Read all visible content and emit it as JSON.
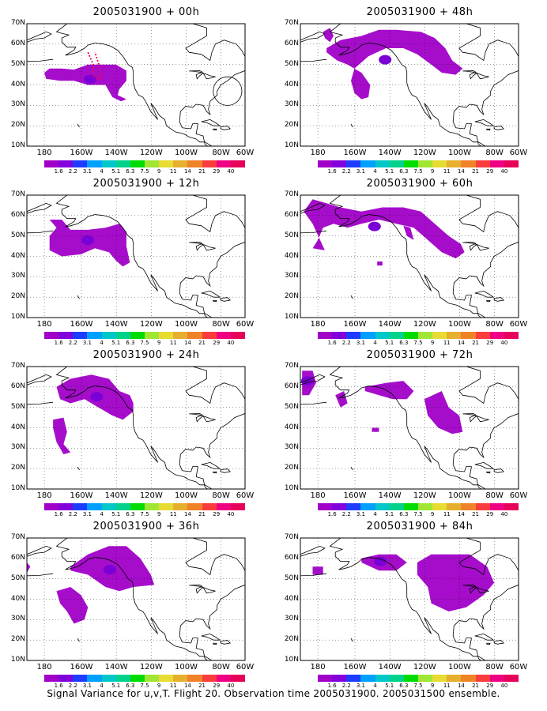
{
  "panels": [
    {
      "title": "2005031900 + 00h"
    },
    {
      "title": "2005031900 + 48h"
    },
    {
      "title": "2005031900 + 12h"
    },
    {
      "title": "2005031900 + 60h"
    },
    {
      "title": "2005031900 + 24h"
    },
    {
      "title": "2005031900 + 72h"
    },
    {
      "title": "2005031900 + 36h"
    },
    {
      "title": "2005031900 + 84h"
    }
  ],
  "lat_labels": [
    "70N",
    "60N",
    "50N",
    "40N",
    "30N",
    "20N",
    "10N"
  ],
  "lon_labels": [
    "180",
    "160W",
    "140W",
    "120W",
    "100W",
    "80W",
    "60W"
  ],
  "colorbar": {
    "labels": [
      "1.6",
      "2.2",
      "3.1",
      "4",
      "5.1",
      "6.3",
      "7.5",
      "9",
      "11",
      "14",
      "21",
      "29",
      "40"
    ],
    "colors": [
      "#a000c8",
      "#8200dc",
      "#1e3cff",
      "#00a0ff",
      "#00c8c8",
      "#00d28c",
      "#00dc00",
      "#a0e632",
      "#e6dc32",
      "#e6af2d",
      "#f08228",
      "#fa3c3c",
      "#f00082",
      "#e6005a"
    ]
  },
  "caption": "Signal Variance for u,v,T. Flight 20. Observation time 2005031900. 2005031500 ensemble."
}
